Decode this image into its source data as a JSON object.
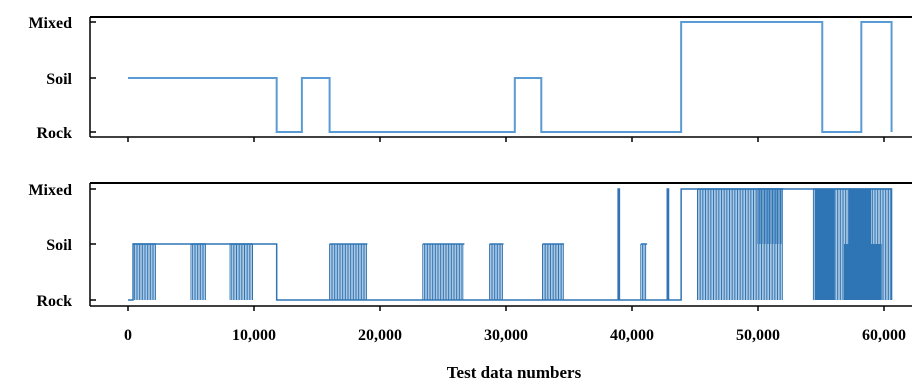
{
  "chart_data": [
    {
      "type": "line",
      "title": "",
      "xlabel": "",
      "ylabel": "",
      "categories_y": [
        "Rock",
        "Soil",
        "Mixed"
      ],
      "xlim": [
        -3000,
        62000
      ],
      "line_color": "#5b9bd5",
      "steps": [
        [
          0,
          "Soil"
        ],
        [
          11800,
          "Rock"
        ],
        [
          13800,
          "Soil"
        ],
        [
          16000,
          "Rock"
        ],
        [
          30700,
          "Soil"
        ],
        [
          32800,
          "Rock"
        ],
        [
          43900,
          "Mixed"
        ],
        [
          55100,
          "Rock"
        ],
        [
          58200,
          "Mixed"
        ],
        [
          60600,
          "Rock"
        ]
      ],
      "x_end": 60600
    },
    {
      "type": "line",
      "title": "",
      "xlabel": "Test data numbers",
      "ylabel": "",
      "categories_y": [
        "Rock",
        "Soil",
        "Mixed"
      ],
      "xlim": [
        -3000,
        62000
      ],
      "line_color": "#2f75b5",
      "x_ticks": [
        0,
        10000,
        20000,
        30000,
        40000,
        50000,
        60000
      ],
      "x_tick_labels": [
        "0",
        "10,000",
        "20,000",
        "30,000",
        "40,000",
        "50,000",
        "60,000"
      ],
      "baseline": [
        [
          0,
          "Rock"
        ],
        [
          400,
          "Soil"
        ],
        [
          11800,
          "Rock"
        ],
        [
          38900,
          "Mixed"
        ],
        [
          39000,
          "Rock"
        ],
        [
          42800,
          "Mixed"
        ],
        [
          42900,
          "Rock"
        ],
        [
          43900,
          "Mixed"
        ],
        [
          60600,
          "Rock"
        ]
      ],
      "dense_bands": [
        {
          "x": [
            400,
            2200
          ],
          "from": "Rock",
          "to": "Soil"
        },
        {
          "x": [
            5000,
            6200
          ],
          "from": "Rock",
          "to": "Soil"
        },
        {
          "x": [
            8100,
            9900
          ],
          "from": "Rock",
          "to": "Soil"
        },
        {
          "x": [
            16000,
            19000
          ],
          "from": "Rock",
          "to": "Soil"
        },
        {
          "x": [
            23400,
            26700
          ],
          "from": "Rock",
          "to": "Soil"
        },
        {
          "x": [
            28700,
            29800
          ],
          "from": "Rock",
          "to": "Soil"
        },
        {
          "x": [
            32900,
            34600
          ],
          "from": "Rock",
          "to": "Soil"
        },
        {
          "x": [
            40700,
            41200
          ],
          "from": "Rock",
          "to": "Soil"
        },
        {
          "x": [
            45200,
            52000
          ],
          "from": "Rock",
          "to": "Mixed"
        },
        {
          "x": [
            50000,
            52000
          ],
          "from": "Soil",
          "to": "Mixed"
        },
        {
          "x": [
            54400,
            60600
          ],
          "from": "Rock",
          "to": "Mixed"
        }
      ],
      "solid_fills": [
        {
          "x": [
            54500,
            56100
          ],
          "from": "Rock",
          "to": "Mixed"
        },
        {
          "x": [
            56800,
            59800
          ],
          "from": "Rock",
          "to": "Soil"
        },
        {
          "x": [
            57200,
            59000
          ],
          "from": "Soil",
          "to": "Mixed"
        }
      ]
    }
  ]
}
